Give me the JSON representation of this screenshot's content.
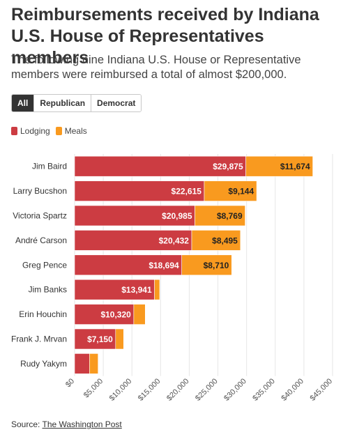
{
  "title": "Reimbursements received by Indiana U.S. House of Representatives members",
  "subtitle": "The following nine Indiana U.S. House or Representative members were reimbursed a total of almost $200,000.",
  "filters": [
    {
      "label": "All",
      "active": true
    },
    {
      "label": "Republican",
      "active": false
    },
    {
      "label": "Democrat",
      "active": false
    }
  ],
  "source": {
    "prefix": "Source: ",
    "link_text": "The Washington Post"
  },
  "colors": {
    "lodging": "#cc3c42",
    "meals": "#f99a1f"
  },
  "chart_data": {
    "type": "bar",
    "orientation": "horizontal",
    "stacked": true,
    "categories": [
      "Jim Baird",
      "Larry Bucshon",
      "Victoria Spartz",
      "André Carson",
      "Greg Pence",
      "Jim Banks",
      "Erin Houchin",
      "Frank J. Mrvan",
      "Rudy Yakym"
    ],
    "series": [
      {
        "name": "Lodging",
        "values": [
          29875,
          22615,
          20985,
          20432,
          18694,
          13941,
          10320,
          7150,
          2600
        ],
        "labels": [
          "$29,875",
          "$22,615",
          "$20,985",
          "$20,432",
          "$18,694",
          "$13,941",
          "$10,320",
          "$7,150",
          ""
        ]
      },
      {
        "name": "Meals",
        "values": [
          11674,
          9144,
          8769,
          8495,
          8710,
          900,
          2000,
          1400,
          1500
        ],
        "labels": [
          "$11,674",
          "$9,144",
          "$8,769",
          "$8,495",
          "$8,710",
          "",
          "",
          "",
          ""
        ]
      }
    ],
    "xlim": [
      0,
      45000
    ],
    "xticks": [
      0,
      5000,
      10000,
      15000,
      20000,
      25000,
      30000,
      35000,
      40000,
      45000
    ],
    "xtick_labels": [
      "$0",
      "$5,000",
      "$10,000",
      "$15,000",
      "$20,000",
      "$25,000",
      "$30,000",
      "$35,000",
      "$40,000",
      "$45,000"
    ],
    "grid": true,
    "legend": "top-left"
  }
}
